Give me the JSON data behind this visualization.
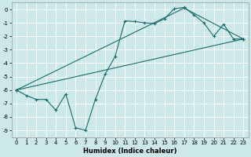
{
  "xlabel": "Humidex (Indice chaleur)",
  "bg_color": "#cce8e8",
  "line_color": "#1a6b6b",
  "grid_color": "#b0d0d0",
  "xlim": [
    -0.5,
    23.5
  ],
  "ylim": [
    -9.5,
    0.5
  ],
  "yticks": [
    0,
    -1,
    -2,
    -3,
    -4,
    -5,
    -6,
    -7,
    -8,
    -9
  ],
  "xticks": [
    0,
    1,
    2,
    3,
    4,
    5,
    6,
    7,
    8,
    9,
    10,
    11,
    12,
    13,
    14,
    15,
    16,
    17,
    18,
    19,
    20,
    21,
    22,
    23
  ],
  "line1_x": [
    0,
    1,
    2,
    3,
    4,
    5,
    6,
    7,
    8,
    9,
    10,
    11,
    12,
    13,
    14,
    15,
    16,
    17,
    18,
    19,
    20,
    21,
    22,
    23
  ],
  "line1_y": [
    -6.0,
    -6.4,
    -6.7,
    -6.7,
    -7.5,
    -6.3,
    -8.8,
    -9.0,
    -6.7,
    -4.8,
    -3.5,
    -0.85,
    -0.9,
    -1.0,
    -1.05,
    -0.7,
    0.05,
    0.15,
    -0.4,
    -1.0,
    -2.0,
    -1.1,
    -2.2,
    -2.2
  ],
  "line2_x": [
    0,
    23
  ],
  "line2_y": [
    -6.0,
    -2.2
  ],
  "line3_x": [
    0,
    17,
    23
  ],
  "line3_y": [
    -6.0,
    0.1,
    -2.2
  ]
}
